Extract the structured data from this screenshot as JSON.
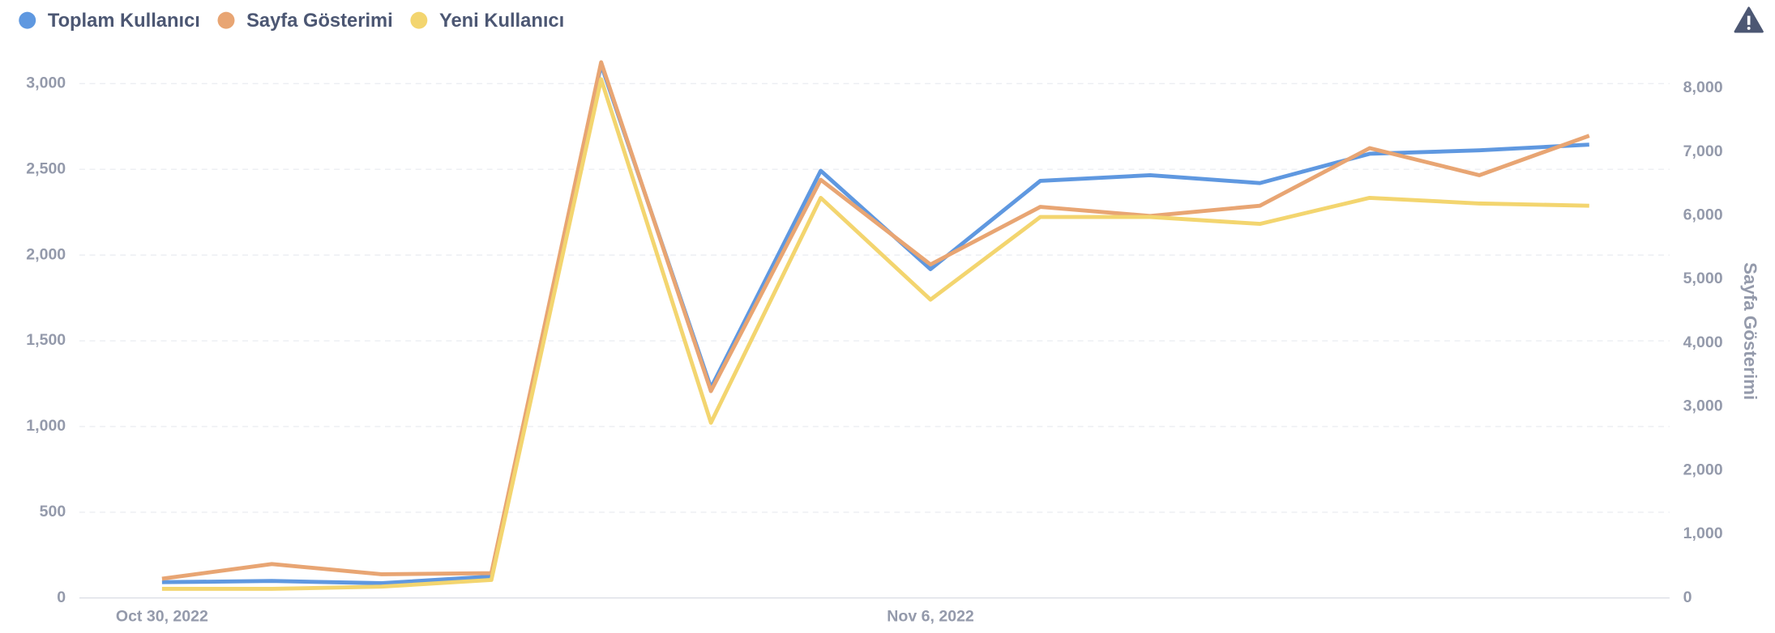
{
  "chart_data": {
    "type": "line",
    "categories": [
      "Oct 30, 2022",
      null,
      null,
      null,
      null,
      null,
      null,
      "Nov 6, 2022",
      null,
      null,
      null,
      null,
      null,
      null
    ],
    "series": [
      {
        "name": "Toplam Kullanıcı",
        "color": "#5f98e0",
        "values": [
          92,
          99,
          86,
          125,
          3110,
          1226,
          2492,
          1918,
          2433,
          2466,
          2420,
          2591,
          2611,
          2644
        ]
      },
      {
        "name": "Sayfa Gösterimi",
        "color": "#e8a573",
        "axis": "y2",
        "values": [
          302,
          532,
          372,
          390,
          8407,
          3246,
          6563,
          5233,
          6137,
          5995,
          6155,
          7059,
          6634,
          7254
        ]
      },
      {
        "name": "Yeni Kullanıcı",
        "color": "#f3d56f",
        "values": [
          53,
          53,
          66,
          105,
          3026,
          1022,
          2334,
          1740,
          2222,
          2222,
          2182,
          2334,
          2301,
          2288
        ]
      }
    ],
    "ylim": [
      0,
      3000
    ],
    "yticks": [
      0,
      500,
      {
        "value": 1000,
        "label": "1,000"
      },
      {
        "value": 1500,
        "label": "1,500"
      },
      {
        "value": 2000,
        "label": "2,000"
      },
      {
        "value": 2500,
        "label": "2,500"
      },
      {
        "value": 3000,
        "label": "3,000"
      }
    ],
    "y2lim": [
      0,
      8000
    ],
    "y2ticks": [
      0,
      {
        "value": 1000,
        "label": "1,000"
      },
      {
        "value": 2000,
        "label": "2,000"
      },
      {
        "value": 3000,
        "label": "3,000"
      },
      {
        "value": 4000,
        "label": "4,000"
      },
      {
        "value": 5000,
        "label": "5,000"
      },
      {
        "value": 6000,
        "label": "6,000"
      },
      {
        "value": 7000,
        "label": "7,000"
      },
      {
        "value": 8000,
        "label": "8,000"
      }
    ],
    "y2label": "Sayfa Gösterimi",
    "grid": true
  }
}
